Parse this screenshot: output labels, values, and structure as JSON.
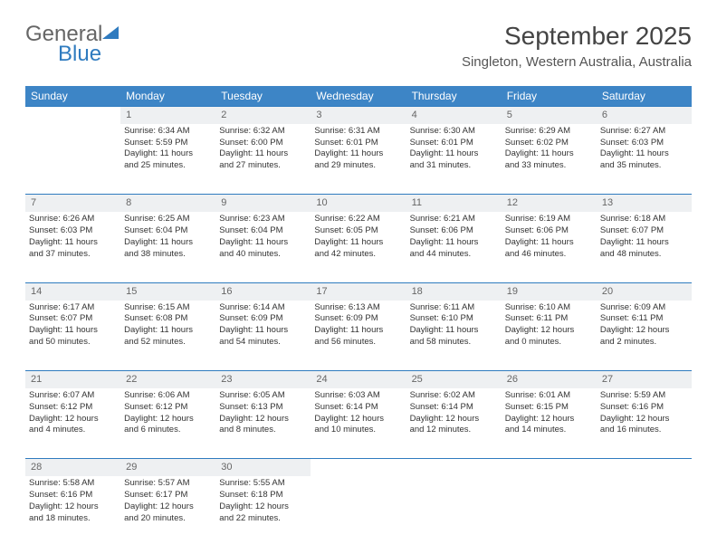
{
  "logo": {
    "word1": "General",
    "word2": "Blue"
  },
  "header": {
    "month_title": "September 2025",
    "location": "Singleton, Western Australia, Australia"
  },
  "colors": {
    "header_bg": "#3d85c6",
    "accent_line": "#2f7bbf",
    "daynum_bg": "#eef0f2",
    "logo_gray": "#666666",
    "logo_blue": "#2f7bbf"
  },
  "weekdays": [
    "Sunday",
    "Monday",
    "Tuesday",
    "Wednesday",
    "Thursday",
    "Friday",
    "Saturday"
  ],
  "weeks": [
    {
      "nums": [
        "",
        "1",
        "2",
        "3",
        "4",
        "5",
        "6"
      ],
      "cells": [
        {},
        {
          "sunrise": "Sunrise: 6:34 AM",
          "sunset": "Sunset: 5:59 PM",
          "day1": "Daylight: 11 hours",
          "day2": "and 25 minutes."
        },
        {
          "sunrise": "Sunrise: 6:32 AM",
          "sunset": "Sunset: 6:00 PM",
          "day1": "Daylight: 11 hours",
          "day2": "and 27 minutes."
        },
        {
          "sunrise": "Sunrise: 6:31 AM",
          "sunset": "Sunset: 6:01 PM",
          "day1": "Daylight: 11 hours",
          "day2": "and 29 minutes."
        },
        {
          "sunrise": "Sunrise: 6:30 AM",
          "sunset": "Sunset: 6:01 PM",
          "day1": "Daylight: 11 hours",
          "day2": "and 31 minutes."
        },
        {
          "sunrise": "Sunrise: 6:29 AM",
          "sunset": "Sunset: 6:02 PM",
          "day1": "Daylight: 11 hours",
          "day2": "and 33 minutes."
        },
        {
          "sunrise": "Sunrise: 6:27 AM",
          "sunset": "Sunset: 6:03 PM",
          "day1": "Daylight: 11 hours",
          "day2": "and 35 minutes."
        }
      ]
    },
    {
      "nums": [
        "7",
        "8",
        "9",
        "10",
        "11",
        "12",
        "13"
      ],
      "cells": [
        {
          "sunrise": "Sunrise: 6:26 AM",
          "sunset": "Sunset: 6:03 PM",
          "day1": "Daylight: 11 hours",
          "day2": "and 37 minutes."
        },
        {
          "sunrise": "Sunrise: 6:25 AM",
          "sunset": "Sunset: 6:04 PM",
          "day1": "Daylight: 11 hours",
          "day2": "and 38 minutes."
        },
        {
          "sunrise": "Sunrise: 6:23 AM",
          "sunset": "Sunset: 6:04 PM",
          "day1": "Daylight: 11 hours",
          "day2": "and 40 minutes."
        },
        {
          "sunrise": "Sunrise: 6:22 AM",
          "sunset": "Sunset: 6:05 PM",
          "day1": "Daylight: 11 hours",
          "day2": "and 42 minutes."
        },
        {
          "sunrise": "Sunrise: 6:21 AM",
          "sunset": "Sunset: 6:06 PM",
          "day1": "Daylight: 11 hours",
          "day2": "and 44 minutes."
        },
        {
          "sunrise": "Sunrise: 6:19 AM",
          "sunset": "Sunset: 6:06 PM",
          "day1": "Daylight: 11 hours",
          "day2": "and 46 minutes."
        },
        {
          "sunrise": "Sunrise: 6:18 AM",
          "sunset": "Sunset: 6:07 PM",
          "day1": "Daylight: 11 hours",
          "day2": "and 48 minutes."
        }
      ]
    },
    {
      "nums": [
        "14",
        "15",
        "16",
        "17",
        "18",
        "19",
        "20"
      ],
      "cells": [
        {
          "sunrise": "Sunrise: 6:17 AM",
          "sunset": "Sunset: 6:07 PM",
          "day1": "Daylight: 11 hours",
          "day2": "and 50 minutes."
        },
        {
          "sunrise": "Sunrise: 6:15 AM",
          "sunset": "Sunset: 6:08 PM",
          "day1": "Daylight: 11 hours",
          "day2": "and 52 minutes."
        },
        {
          "sunrise": "Sunrise: 6:14 AM",
          "sunset": "Sunset: 6:09 PM",
          "day1": "Daylight: 11 hours",
          "day2": "and 54 minutes."
        },
        {
          "sunrise": "Sunrise: 6:13 AM",
          "sunset": "Sunset: 6:09 PM",
          "day1": "Daylight: 11 hours",
          "day2": "and 56 minutes."
        },
        {
          "sunrise": "Sunrise: 6:11 AM",
          "sunset": "Sunset: 6:10 PM",
          "day1": "Daylight: 11 hours",
          "day2": "and 58 minutes."
        },
        {
          "sunrise": "Sunrise: 6:10 AM",
          "sunset": "Sunset: 6:11 PM",
          "day1": "Daylight: 12 hours",
          "day2": "and 0 minutes."
        },
        {
          "sunrise": "Sunrise: 6:09 AM",
          "sunset": "Sunset: 6:11 PM",
          "day1": "Daylight: 12 hours",
          "day2": "and 2 minutes."
        }
      ]
    },
    {
      "nums": [
        "21",
        "22",
        "23",
        "24",
        "25",
        "26",
        "27"
      ],
      "cells": [
        {
          "sunrise": "Sunrise: 6:07 AM",
          "sunset": "Sunset: 6:12 PM",
          "day1": "Daylight: 12 hours",
          "day2": "and 4 minutes."
        },
        {
          "sunrise": "Sunrise: 6:06 AM",
          "sunset": "Sunset: 6:12 PM",
          "day1": "Daylight: 12 hours",
          "day2": "and 6 minutes."
        },
        {
          "sunrise": "Sunrise: 6:05 AM",
          "sunset": "Sunset: 6:13 PM",
          "day1": "Daylight: 12 hours",
          "day2": "and 8 minutes."
        },
        {
          "sunrise": "Sunrise: 6:03 AM",
          "sunset": "Sunset: 6:14 PM",
          "day1": "Daylight: 12 hours",
          "day2": "and 10 minutes."
        },
        {
          "sunrise": "Sunrise: 6:02 AM",
          "sunset": "Sunset: 6:14 PM",
          "day1": "Daylight: 12 hours",
          "day2": "and 12 minutes."
        },
        {
          "sunrise": "Sunrise: 6:01 AM",
          "sunset": "Sunset: 6:15 PM",
          "day1": "Daylight: 12 hours",
          "day2": "and 14 minutes."
        },
        {
          "sunrise": "Sunrise: 5:59 AM",
          "sunset": "Sunset: 6:16 PM",
          "day1": "Daylight: 12 hours",
          "day2": "and 16 minutes."
        }
      ]
    },
    {
      "nums": [
        "28",
        "29",
        "30",
        "",
        "",
        "",
        ""
      ],
      "cells": [
        {
          "sunrise": "Sunrise: 5:58 AM",
          "sunset": "Sunset: 6:16 PM",
          "day1": "Daylight: 12 hours",
          "day2": "and 18 minutes."
        },
        {
          "sunrise": "Sunrise: 5:57 AM",
          "sunset": "Sunset: 6:17 PM",
          "day1": "Daylight: 12 hours",
          "day2": "and 20 minutes."
        },
        {
          "sunrise": "Sunrise: 5:55 AM",
          "sunset": "Sunset: 6:18 PM",
          "day1": "Daylight: 12 hours",
          "day2": "and 22 minutes."
        },
        {},
        {},
        {},
        {}
      ]
    }
  ]
}
